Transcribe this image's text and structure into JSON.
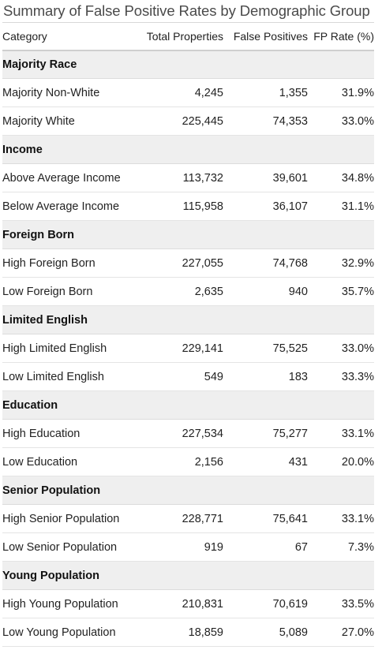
{
  "title": "Summary of False Positive Rates by Demographic Group",
  "columns": [
    "Category",
    "Total Properties",
    "False Positives",
    "FP Rate (%)"
  ],
  "groups": [
    {
      "name": "Majority Race",
      "rows": [
        {
          "category": "Majority Non-White",
          "total": "4,245",
          "fp": "1,355",
          "rate": "31.9%"
        },
        {
          "category": "Majority White",
          "total": "225,445",
          "fp": "74,353",
          "rate": "33.0%"
        }
      ]
    },
    {
      "name": "Income",
      "rows": [
        {
          "category": "Above Average Income",
          "total": "113,732",
          "fp": "39,601",
          "rate": "34.8%"
        },
        {
          "category": "Below Average Income",
          "total": "115,958",
          "fp": "36,107",
          "rate": "31.1%"
        }
      ]
    },
    {
      "name": "Foreign Born",
      "rows": [
        {
          "category": "High Foreign Born",
          "total": "227,055",
          "fp": "74,768",
          "rate": "32.9%"
        },
        {
          "category": "Low Foreign Born",
          "total": "2,635",
          "fp": "940",
          "rate": "35.7%"
        }
      ]
    },
    {
      "name": "Limited English",
      "rows": [
        {
          "category": "High Limited English",
          "total": "229,141",
          "fp": "75,525",
          "rate": "33.0%"
        },
        {
          "category": "Low Limited English",
          "total": "549",
          "fp": "183",
          "rate": "33.3%"
        }
      ]
    },
    {
      "name": "Education",
      "rows": [
        {
          "category": "High Education",
          "total": "227,534",
          "fp": "75,277",
          "rate": "33.1%"
        },
        {
          "category": "Low Education",
          "total": "2,156",
          "fp": "431",
          "rate": "20.0%"
        }
      ]
    },
    {
      "name": "Senior Population",
      "rows": [
        {
          "category": "High Senior Population",
          "total": "228,771",
          "fp": "75,641",
          "rate": "33.1%"
        },
        {
          "category": "Low Senior Population",
          "total": "919",
          "fp": "67",
          "rate": "7.3%"
        }
      ]
    },
    {
      "name": "Young Population",
      "rows": [
        {
          "category": "High Young Population",
          "total": "210,831",
          "fp": "70,619",
          "rate": "33.5%"
        },
        {
          "category": "Low Young Population",
          "total": "18,859",
          "fp": "5,089",
          "rate": "27.0%"
        }
      ]
    }
  ]
}
